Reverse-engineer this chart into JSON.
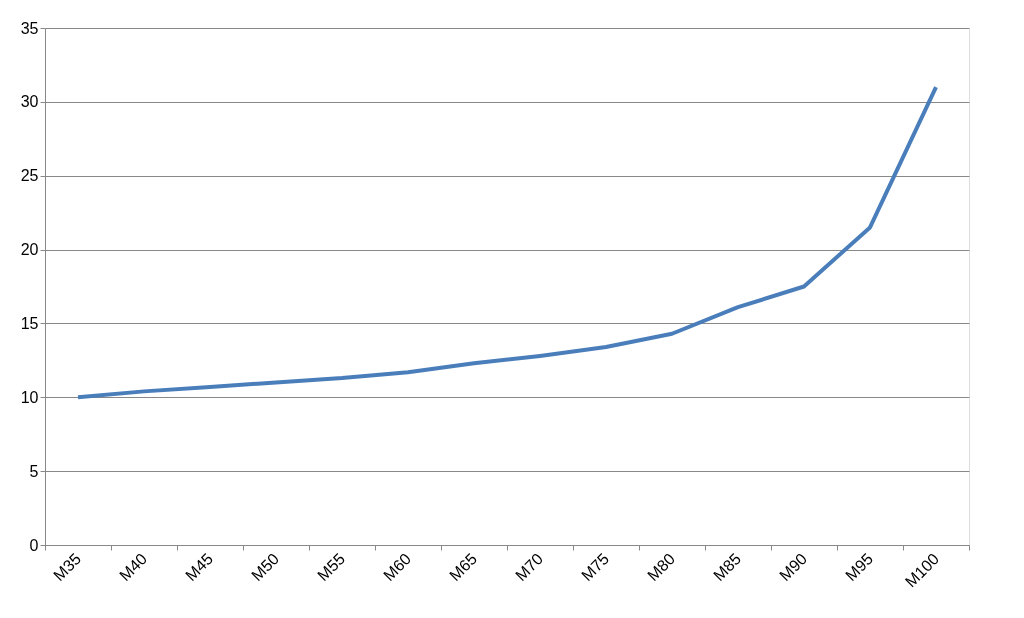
{
  "chart_data": {
    "type": "line",
    "categories": [
      "M35",
      "M40",
      "M45",
      "M50",
      "M55",
      "M60",
      "M65",
      "M70",
      "M75",
      "M80",
      "M85",
      "M90",
      "M95",
      "M100"
    ],
    "series": [
      {
        "color": "#4a7ebb",
        "values": [
          10.0,
          10.4,
          10.7,
          11.0,
          11.3,
          11.7,
          12.3,
          12.8,
          13.4,
          14.3,
          16.1,
          17.5,
          21.5,
          31.0
        ]
      }
    ],
    "ylim": [
      0,
      35
    ],
    "yticks": [
      0,
      5,
      10,
      15,
      20,
      25,
      30,
      35
    ],
    "grid": "y",
    "marker": "none",
    "line_style": "solid"
  }
}
